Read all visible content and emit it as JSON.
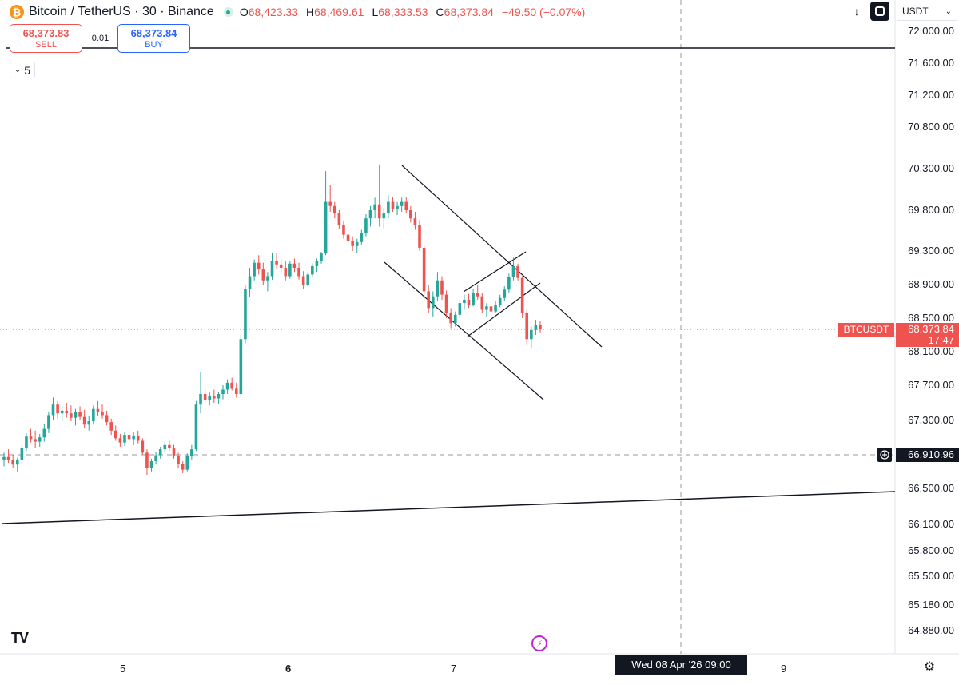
{
  "header": {
    "coin_glyph": "₿",
    "title": "Bitcoin / TetherUS · 30 · Binance",
    "ohlc": [
      {
        "k": "O",
        "v": "68,423.33"
      },
      {
        "k": "H",
        "v": "68,469.61"
      },
      {
        "k": "L",
        "v": "68,333.53"
      },
      {
        "k": "C",
        "v": "68,373.84"
      }
    ],
    "change": "−49.50 (−0.07%)"
  },
  "trade": {
    "sell_price": "68,373.83",
    "sell_label": "SELL",
    "spread": "0.01",
    "buy_price": "68,373.84",
    "buy_label": "BUY"
  },
  "indicators_collapse": {
    "count": "5"
  },
  "toolbar": {
    "currency": "USDT",
    "download_icon": "download-icon",
    "fullscreen_icon": "fullscreen-icon"
  },
  "price_axis": [
    "72,000.00",
    "71,600.00",
    "71,200.00",
    "70,800.00",
    "70,300.00",
    "69,800.00",
    "69,300.00",
    "68,900.00",
    "68,500.00",
    "68,100.00",
    "67,700.00",
    "67,300.00",
    "66,500.00",
    "66,100.00",
    "65,800.00",
    "65,500.00",
    "65,180.00",
    "64,880.00"
  ],
  "time_axis": [
    "5",
    "6",
    "7",
    "9"
  ],
  "last_price": {
    "symbol": "BTCUSDT",
    "price": "68,373.84",
    "countdown": "17:47"
  },
  "crosshair": {
    "price": "66,910.96",
    "time": "Wed 08 Apr '26   09:00"
  },
  "colors": {
    "up": "#26a69a",
    "down": "#ef5350",
    "text": "#131722"
  },
  "chart_data": {
    "type": "candlestick",
    "interval": "30",
    "candles_ohlc": [
      [
        66840,
        66920,
        66760,
        66870
      ],
      [
        66870,
        66960,
        66800,
        66830
      ],
      [
        66830,
        66900,
        66740,
        66780
      ],
      [
        66780,
        66860,
        66700,
        66830
      ],
      [
        66830,
        67010,
        66790,
        66980
      ],
      [
        66980,
        67150,
        66940,
        67110
      ],
      [
        67110,
        67200,
        67040,
        67080
      ],
      [
        67080,
        67180,
        66980,
        67050
      ],
      [
        67050,
        67140,
        66990,
        67100
      ],
      [
        67100,
        67260,
        67050,
        67200
      ],
      [
        67200,
        67400,
        67150,
        67360
      ],
      [
        67360,
        67560,
        67300,
        67480
      ],
      [
        67480,
        67520,
        67320,
        67380
      ],
      [
        67380,
        67460,
        67290,
        67410
      ],
      [
        67410,
        67500,
        67330,
        67380
      ],
      [
        67380,
        67470,
        67290,
        67330
      ],
      [
        67330,
        67430,
        67240,
        67400
      ],
      [
        67400,
        67460,
        67300,
        67340
      ],
      [
        67340,
        67420,
        67210,
        67250
      ],
      [
        67250,
        67350,
        67180,
        67290
      ],
      [
        67290,
        67470,
        67250,
        67430
      ],
      [
        67430,
        67520,
        67350,
        67400
      ],
      [
        67400,
        67480,
        67320,
        67360
      ],
      [
        67360,
        67410,
        67240,
        67280
      ],
      [
        67280,
        67320,
        67130,
        67180
      ],
      [
        67180,
        67240,
        67060,
        67090
      ],
      [
        67090,
        67140,
        66990,
        67040
      ],
      [
        67040,
        67160,
        67000,
        67130
      ],
      [
        67130,
        67200,
        67050,
        67080
      ],
      [
        67080,
        67160,
        67010,
        67120
      ],
      [
        67120,
        67180,
        67030,
        67060
      ],
      [
        67060,
        67090,
        66900,
        66920
      ],
      [
        66920,
        66960,
        66660,
        66740
      ],
      [
        66740,
        66850,
        66700,
        66820
      ],
      [
        66820,
        66930,
        66780,
        66890
      ],
      [
        66890,
        66990,
        66850,
        66960
      ],
      [
        66960,
        67050,
        66920,
        67010
      ],
      [
        67010,
        67060,
        66940,
        66970
      ],
      [
        66970,
        67010,
        66850,
        66880
      ],
      [
        66880,
        66920,
        66740,
        66790
      ],
      [
        66790,
        66820,
        66680,
        66720
      ],
      [
        66720,
        66910,
        66700,
        66880
      ],
      [
        66880,
        67010,
        66840,
        66960
      ],
      [
        66960,
        67520,
        66940,
        67480
      ],
      [
        67480,
        67860,
        67380,
        67600
      ],
      [
        67600,
        67660,
        67480,
        67530
      ],
      [
        67530,
        67620,
        67470,
        67580
      ],
      [
        67580,
        67650,
        67500,
        67550
      ],
      [
        67550,
        67620,
        67490,
        67600
      ],
      [
        67600,
        67700,
        67540,
        67650
      ],
      [
        67650,
        67770,
        67600,
        67730
      ],
      [
        67730,
        67790,
        67640,
        67660
      ],
      [
        67660,
        67730,
        67560,
        67600
      ],
      [
        67600,
        68300,
        67580,
        68250
      ],
      [
        68250,
        68900,
        68200,
        68850
      ],
      [
        68850,
        69100,
        68750,
        69000
      ],
      [
        69000,
        69200,
        68950,
        69160
      ],
      [
        69160,
        69250,
        69020,
        69080
      ],
      [
        69080,
        69160,
        68900,
        68950
      ],
      [
        68950,
        69050,
        68820,
        69000
      ],
      [
        69000,
        69280,
        68960,
        69180
      ],
      [
        69180,
        69280,
        69080,
        69140
      ],
      [
        69140,
        69200,
        69050,
        69100
      ],
      [
        69100,
        69180,
        68950,
        69000
      ],
      [
        69000,
        69180,
        68970,
        69150
      ],
      [
        69150,
        69210,
        69050,
        69100
      ],
      [
        69100,
        69160,
        68960,
        69000
      ],
      [
        69000,
        69060,
        68850,
        68900
      ],
      [
        68900,
        69050,
        68880,
        69020
      ],
      [
        69020,
        69150,
        68990,
        69120
      ],
      [
        69120,
        69210,
        69050,
        69180
      ],
      [
        69180,
        69290,
        69150,
        69270
      ],
      [
        69270,
        70270,
        69250,
        69900
      ],
      [
        69900,
        70100,
        69780,
        69850
      ],
      [
        69850,
        69900,
        69700,
        69760
      ],
      [
        69760,
        69800,
        69570,
        69620
      ],
      [
        69620,
        69670,
        69450,
        69500
      ],
      [
        69500,
        69560,
        69380,
        69420
      ],
      [
        69420,
        69480,
        69300,
        69360
      ],
      [
        69360,
        69450,
        69280,
        69410
      ],
      [
        69410,
        69560,
        69380,
        69520
      ],
      [
        69520,
        69750,
        69480,
        69700
      ],
      [
        69700,
        69850,
        69600,
        69800
      ],
      [
        69800,
        69950,
        69700,
        69870
      ],
      [
        69870,
        70350,
        69600,
        69700
      ],
      [
        69700,
        69830,
        69580,
        69760
      ],
      [
        69760,
        69980,
        69700,
        69900
      ],
      [
        69900,
        69960,
        69780,
        69820
      ],
      [
        69820,
        69900,
        69740,
        69850
      ],
      [
        69850,
        69950,
        69780,
        69900
      ],
      [
        69900,
        69960,
        69760,
        69800
      ],
      [
        69800,
        69850,
        69650,
        69700
      ],
      [
        69700,
        69780,
        69560,
        69620
      ],
      [
        69620,
        69680,
        69300,
        69340
      ],
      [
        69340,
        69380,
        68700,
        68820
      ],
      [
        68820,
        68900,
        68560,
        68620
      ],
      [
        68620,
        68820,
        68520,
        68760
      ],
      [
        68760,
        69050,
        68700,
        68950
      ],
      [
        68950,
        69000,
        68720,
        68780
      ],
      [
        68780,
        68830,
        68500,
        68560
      ],
      [
        68560,
        68620,
        68380,
        68440
      ],
      [
        68440,
        68580,
        68400,
        68540
      ],
      [
        68540,
        68720,
        68500,
        68680
      ],
      [
        68680,
        68780,
        68600,
        68720
      ],
      [
        68720,
        68790,
        68620,
        68660
      ],
      [
        68660,
        68850,
        68640,
        68800
      ],
      [
        68800,
        68900,
        68720,
        68760
      ],
      [
        68760,
        68800,
        68560,
        68600
      ],
      [
        68600,
        68680,
        68520,
        68640
      ],
      [
        68640,
        68690,
        68540,
        68580
      ],
      [
        68580,
        68700,
        68560,
        68660
      ],
      [
        68660,
        68780,
        68630,
        68740
      ],
      [
        68740,
        68880,
        68700,
        68840
      ],
      [
        68840,
        69030,
        68800,
        68990
      ],
      [
        68990,
        69220,
        68950,
        69120
      ],
      [
        69120,
        69150,
        68950,
        68980
      ],
      [
        68980,
        69000,
        68500,
        68560
      ],
      [
        68560,
        68600,
        68180,
        68250
      ],
      [
        68250,
        68400,
        68140,
        68360
      ],
      [
        68360,
        68480,
        68300,
        68420
      ],
      [
        68420,
        68470,
        68330,
        68374
      ]
    ],
    "y_range": [
      64700,
      72200
    ],
    "y_ticks": [
      "72,000.00",
      "71,600.00",
      "71,200.00",
      "70,800.00",
      "70,300.00",
      "69,800.00",
      "69,300.00",
      "68,900.00",
      "68,500.00",
      "68,100.00",
      "67,700.00",
      "67,300.00",
      "66,500.00",
      "66,100.00",
      "65,800.00",
      "65,500.00",
      "65,180.00",
      "64,880.00"
    ],
    "x_ticks": [
      "5",
      "6",
      "7",
      "9"
    ],
    "horizontal_line_price": 71750,
    "last_price": 68373.84,
    "grid": false
  }
}
